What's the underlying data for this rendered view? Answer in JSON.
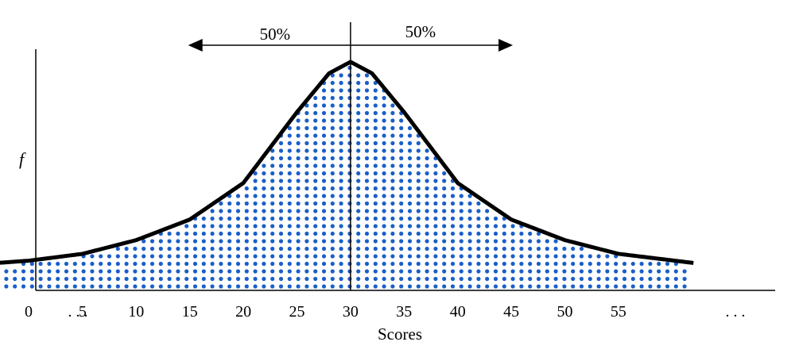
{
  "chart_data": {
    "type": "area",
    "title": "",
    "xlabel": "Scores",
    "ylabel": "f",
    "origin_label": "0",
    "ellipsis_left": ". . .",
    "ellipsis_right": ". . .",
    "tick_labels": [
      5,
      10,
      15,
      20,
      25,
      30,
      35,
      40,
      45,
      50,
      55
    ],
    "xlim": [
      0,
      70
    ],
    "curve": {
      "center": 30,
      "shape": "peaked symmetric (leptokurtic) distribution",
      "x_range": [
        -3,
        62
      ],
      "fill": "blue dotted",
      "x": [
        -3,
        0,
        5,
        10,
        15,
        20,
        25,
        28,
        30,
        32,
        35,
        40,
        45,
        50,
        55,
        62
      ],
      "y": [
        0.12,
        0.13,
        0.16,
        0.22,
        0.31,
        0.47,
        0.78,
        0.95,
        1.0,
        0.95,
        0.78,
        0.47,
        0.31,
        0.22,
        0.16,
        0.12
      ]
    },
    "median_line": {
      "x": 30,
      "left_label": "50%",
      "right_label": "50%",
      "arrow_left_to": 15,
      "arrow_right_to": 45
    },
    "grid": false,
    "legend": "none",
    "colors": {
      "curve": "#000000",
      "dots": "#1a5fc8",
      "axis": "#000000"
    }
  }
}
